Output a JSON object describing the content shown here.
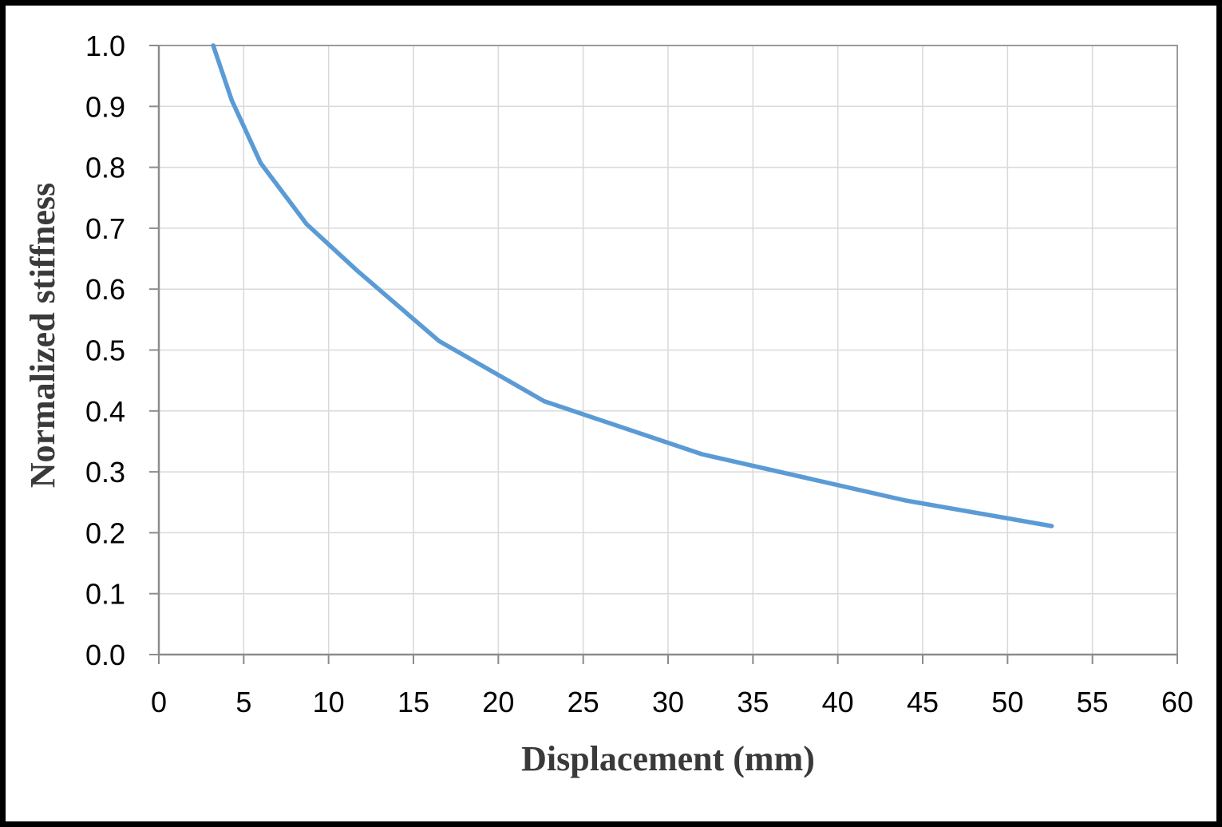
{
  "chart_data": {
    "type": "line",
    "title": "",
    "xlabel": "Displacement (mm)",
    "ylabel": "Normalized stiffness",
    "xlim": [
      0,
      60
    ],
    "ylim": [
      0,
      1.0
    ],
    "x_ticks": [
      "0",
      "5",
      "10",
      "15",
      "20",
      "25",
      "30",
      "35",
      "40",
      "45",
      "50",
      "55",
      "60"
    ],
    "y_ticks": [
      "0.0",
      "0.1",
      "0.2",
      "0.3",
      "0.4",
      "0.5",
      "0.6",
      "0.7",
      "0.8",
      "0.9",
      "1.0"
    ],
    "grid": true,
    "legend": "none",
    "series": [
      {
        "color": "#5b9bd5",
        "x": [
          3.2,
          4.3,
          6.0,
          8.7,
          11.7,
          16.5,
          22.7,
          32.0,
          44.0,
          52.6
        ],
        "y": [
          1.0,
          0.91,
          0.807,
          0.707,
          0.63,
          0.515,
          0.416,
          0.329,
          0.253,
          0.211
        ]
      }
    ]
  }
}
